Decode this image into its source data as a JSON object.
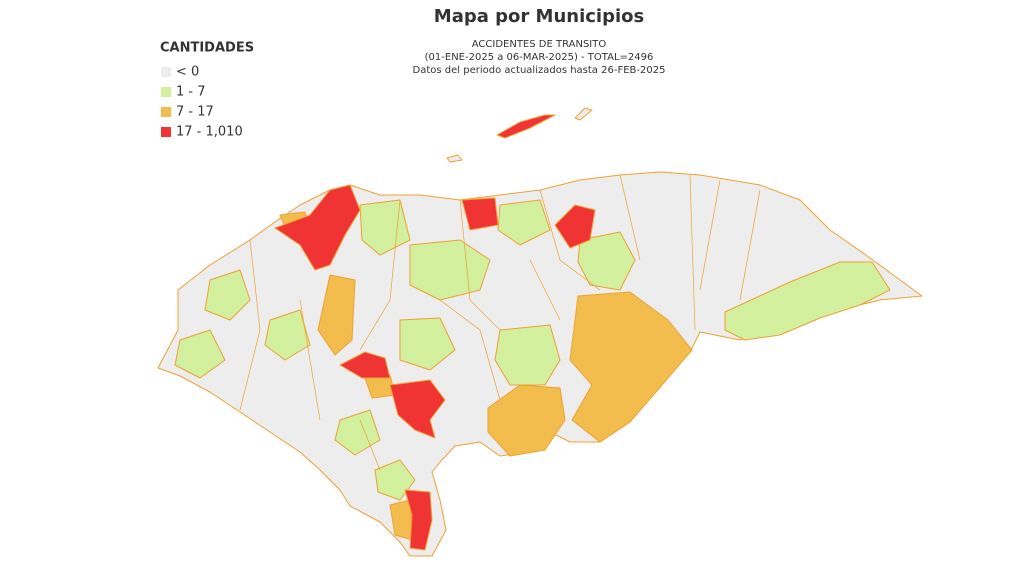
{
  "title": "Mapa por Municipios",
  "subtitle": [
    "ACCIDENTES DE TRANSITO",
    "(01-ENE-2025 a 06-MAR-2025) - TOTAL=2496",
    "Datos del periodo actualizados hasta 26-FEB-2025"
  ],
  "legend": {
    "title": "CANTIDADES",
    "items": [
      {
        "label": "< 0",
        "color": "#ededed"
      },
      {
        "label": "1 - 7",
        "color": "#d3f09e"
      },
      {
        "label": "7 - 17",
        "color": "#f2bd4d"
      },
      {
        "label": "17 - 1,010",
        "color": "#f03333"
      }
    ]
  }
}
